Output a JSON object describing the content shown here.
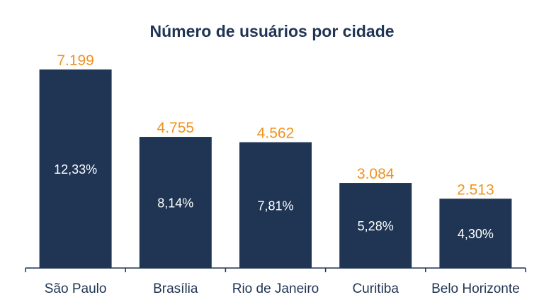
{
  "chart_data": {
    "type": "bar",
    "title": "Número de usuários por cidade",
    "categories": [
      "São Paulo",
      "Brasília",
      "Rio de Janeiro",
      "Curitiba",
      "Belo Horizonte"
    ],
    "values": [
      7199,
      4755,
      4562,
      3084,
      2513
    ],
    "value_labels": [
      "7.199",
      "4.755",
      "4.562",
      "3.084",
      "2.513"
    ],
    "percent_labels": [
      "12,33%",
      "8,14%",
      "7,81%",
      "5,28%",
      "4,30%"
    ],
    "xlabel": "",
    "ylabel": "",
    "ylim": [
      0,
      7199
    ],
    "grid": false,
    "legend": "none",
    "colors": {
      "bar": "#1f3553",
      "value_label": "#f1921f",
      "percent_label": "#ffffff",
      "title": "#1f3553",
      "axis": "#1f3553"
    }
  }
}
